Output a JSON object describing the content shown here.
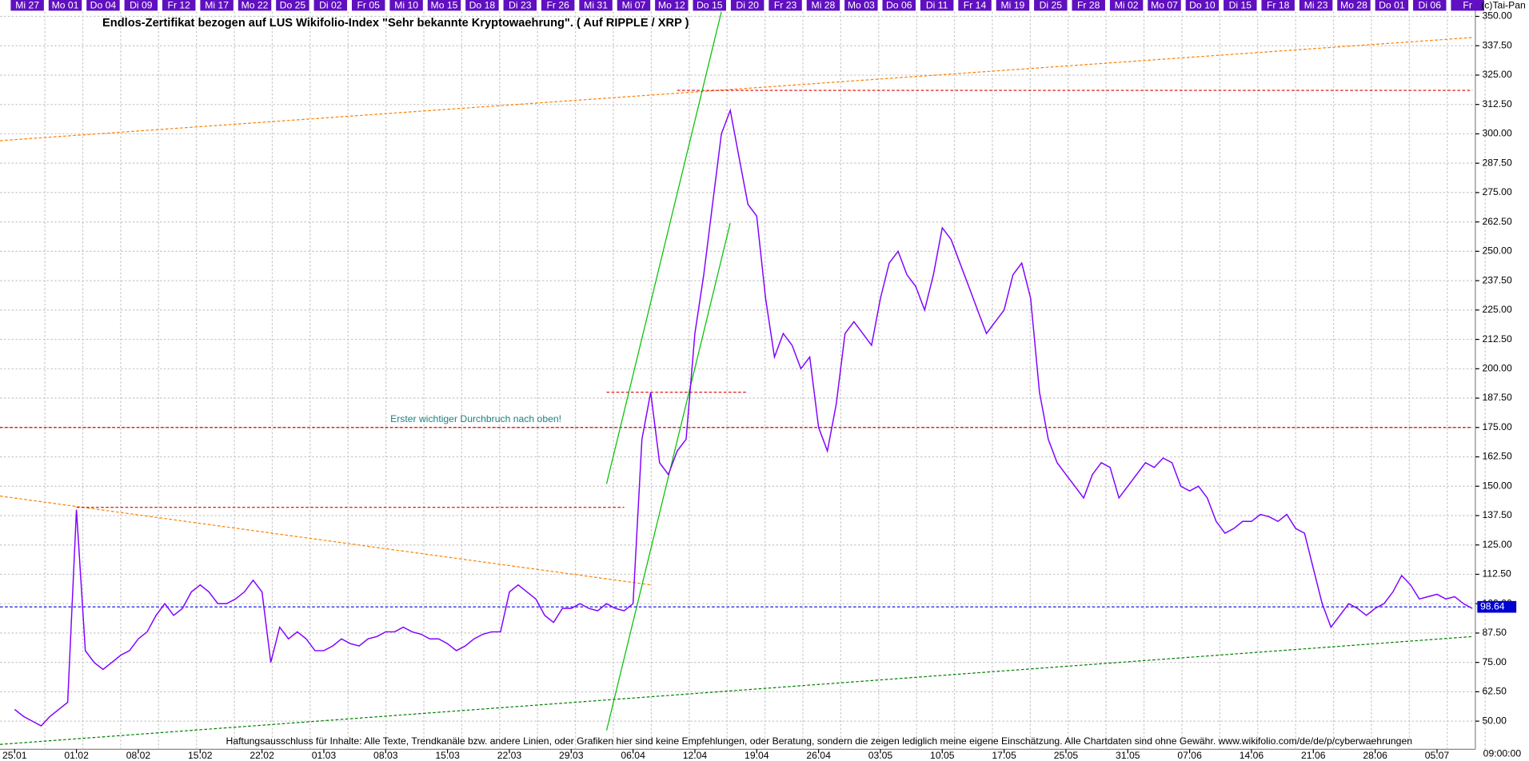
{
  "chart_data": {
    "type": "line",
    "title": "Endlos-Zertifikat bezogen auf LUS Wikifolio-Index \"Sehr bekannte Kryptowaehrung\". ( Auf RIPPLE / XRP )",
    "copyright": "(c)Tai-Pan",
    "annotation": "Erster wichtiger Durchbruch nach oben!",
    "footer": "Haftungsausschluss für Inhalte: Alle Texte, Trendkanäle bzw. andere Linien, oder Grafiken hier sind keine Empfehlungen, oder Beratung, sondern die zeigen lediglich meine eigene Einschätzung. Alle Chartdaten sind ohne Gewähr.  www.wikifolio.com/de/de/p/cyberwaehrungen",
    "time_label": "09:00:00",
    "top_labels": [
      "Mi 27",
      "Mo 01",
      "Do 04",
      "Di 09",
      "Fr 12",
      "Mi 17",
      "Mo 22",
      "Do 25",
      "Di 02",
      "Fr 05",
      "Mi 10",
      "Mo 15",
      "Do 18",
      "Di 23",
      "Fr 26",
      "Mi 31",
      "Mi 07",
      "Mo 12",
      "Do 15",
      "Di 20",
      "Fr 23",
      "Mi 28",
      "Mo 03",
      "Do 06",
      "Di 11",
      "Fr 14",
      "Mi 19",
      "Di 25",
      "Fr 28",
      "Mi 02",
      "Mo 07",
      "Do 10",
      "Di 15",
      "Fr 18",
      "Mi 23",
      "Mo 28",
      "Do 01",
      "Di 06",
      "Fr"
    ],
    "categories": [
      "25.01",
      null,
      null,
      null,
      null,
      null,
      null,
      "01.02",
      null,
      null,
      null,
      null,
      null,
      null,
      "08.02",
      null,
      null,
      null,
      null,
      null,
      null,
      "15.02",
      null,
      null,
      null,
      null,
      null,
      null,
      "22.02",
      null,
      null,
      null,
      null,
      null,
      null,
      "01.03",
      null,
      null,
      null,
      null,
      null,
      null,
      "08.03",
      null,
      null,
      null,
      null,
      null,
      null,
      "15.03",
      null,
      null,
      null,
      null,
      null,
      null,
      "22.03",
      null,
      null,
      null,
      null,
      null,
      null,
      "29.03",
      null,
      null,
      null,
      null,
      null,
      null,
      "06.04",
      null,
      null,
      null,
      null,
      null,
      null,
      "12.04",
      null,
      null,
      null,
      null,
      null,
      null,
      "19.04",
      null,
      null,
      null,
      null,
      null,
      null,
      "26.04",
      null,
      null,
      null,
      null,
      null,
      null,
      "03.05",
      null,
      null,
      null,
      null,
      null,
      null,
      "10.05",
      null,
      null,
      null,
      null,
      null,
      null,
      "17.05",
      null,
      null,
      null,
      null,
      null,
      null,
      "25.05",
      null,
      null,
      null,
      null,
      null,
      null,
      "31.05",
      null,
      null,
      null,
      null,
      null,
      null,
      "07.06",
      null,
      null,
      null,
      null,
      null,
      null,
      "14.06",
      null,
      null,
      null,
      null,
      null,
      null,
      "21.06",
      null,
      null,
      null,
      null,
      null,
      null,
      "28.06",
      null,
      null,
      null,
      null,
      null,
      null,
      "05.07",
      null,
      null,
      null,
      null
    ],
    "values": [
      55,
      52,
      50,
      48,
      52,
      55,
      58,
      140,
      80,
      75,
      72,
      75,
      78,
      80,
      85,
      88,
      95,
      100,
      95,
      98,
      105,
      108,
      105,
      100,
      100,
      102,
      105,
      110,
      105,
      75,
      90,
      85,
      88,
      85,
      80,
      80,
      82,
      85,
      83,
      82,
      85,
      86,
      88,
      88,
      90,
      88,
      87,
      85,
      85,
      83,
      80,
      82,
      85,
      87,
      88,
      88,
      105,
      108,
      105,
      102,
      95,
      92,
      98,
      98,
      100,
      98,
      97,
      100,
      98,
      97,
      100,
      170,
      190,
      160,
      155,
      165,
      170,
      215,
      240,
      270,
      300,
      310,
      290,
      270,
      265,
      230,
      205,
      215,
      210,
      200,
      205,
      175,
      165,
      185,
      215,
      220,
      215,
      210,
      230,
      245,
      250,
      240,
      235,
      225,
      240,
      260,
      255,
      245,
      235,
      225,
      215,
      220,
      225,
      240,
      245,
      230,
      190,
      170,
      160,
      155,
      150,
      145,
      155,
      160,
      158,
      145,
      150,
      155,
      160,
      158,
      162,
      160,
      150,
      148,
      150,
      145,
      135,
      130,
      132,
      135,
      135,
      138,
      137,
      135,
      138,
      132,
      130,
      115,
      100,
      90,
      95,
      100,
      98,
      95,
      98,
      100,
      105,
      112,
      108,
      102,
      103,
      104,
      102,
      103,
      100,
      98
    ],
    "color": "#8000ff",
    "last_price": 98.64,
    "ylim": [
      38,
      352
    ],
    "yticks": [
      {
        "value": 50,
        "label": "50.00"
      },
      {
        "value": 62.5,
        "label": "62.50"
      },
      {
        "value": 75,
        "label": "75.00"
      },
      {
        "value": 87.5,
        "label": "87.50"
      },
      {
        "value": 100,
        "label": "100.00"
      },
      {
        "value": 112.5,
        "label": "112.50"
      },
      {
        "value": 125,
        "label": "125.00"
      },
      {
        "value": 137.5,
        "label": "137.50"
      },
      {
        "value": 150,
        "label": "150.00"
      },
      {
        "value": 162.5,
        "label": "162.50"
      },
      {
        "value": 175,
        "label": "175.00"
      },
      {
        "value": 187.5,
        "label": "187.50"
      },
      {
        "value": 200,
        "label": "200.00"
      },
      {
        "value": 212.5,
        "label": "212.50"
      },
      {
        "value": 225,
        "label": "225.00"
      },
      {
        "value": 237.5,
        "label": "237.50"
      },
      {
        "value": 250,
        "label": "250.00"
      },
      {
        "value": 262.5,
        "label": "262.50"
      },
      {
        "value": 275,
        "label": "275.00"
      },
      {
        "value": 287.5,
        "label": "287.50"
      },
      {
        "value": 300,
        "label": "300.00"
      },
      {
        "value": 312.5,
        "label": "312.50"
      },
      {
        "value": 325,
        "label": "325.00"
      },
      {
        "value": 337.5,
        "label": "337.50"
      },
      {
        "value": 350,
        "label": "350.00"
      }
    ],
    "grid": true,
    "trendlines": [
      {
        "color": "#ff8000",
        "x": [
          -2,
          165
        ],
        "y": [
          297,
          341
        ]
      },
      {
        "color": "#ff8000",
        "x": [
          -2,
          72
        ],
        "y": [
          146,
          108
        ]
      },
      {
        "color": "#e00000",
        "x": [
          -2,
          165
        ],
        "y": [
          175,
          175
        ]
      },
      {
        "color": "#e00000",
        "x": [
          75,
          165
        ],
        "y": [
          318.5,
          318.5
        ]
      },
      {
        "color": "#e00000",
        "x": [
          67,
          83
        ],
        "y": [
          190,
          190
        ]
      },
      {
        "color": "#e00000",
        "x": [
          7,
          69
        ],
        "y": [
          141,
          141
        ]
      },
      {
        "color": "#008000",
        "x": [
          -2,
          165
        ],
        "y": [
          40,
          86
        ]
      },
      {
        "color": "#00c000",
        "x": [
          67,
          80
        ],
        "y": [
          151,
          352
        ]
      },
      {
        "color": "#00c000",
        "x": [
          67,
          81
        ],
        "y": [
          46,
          262
        ]
      },
      {
        "color": "#0000e0",
        "x": [
          -2,
          165
        ],
        "y": [
          98.64,
          98.64
        ]
      }
    ]
  }
}
